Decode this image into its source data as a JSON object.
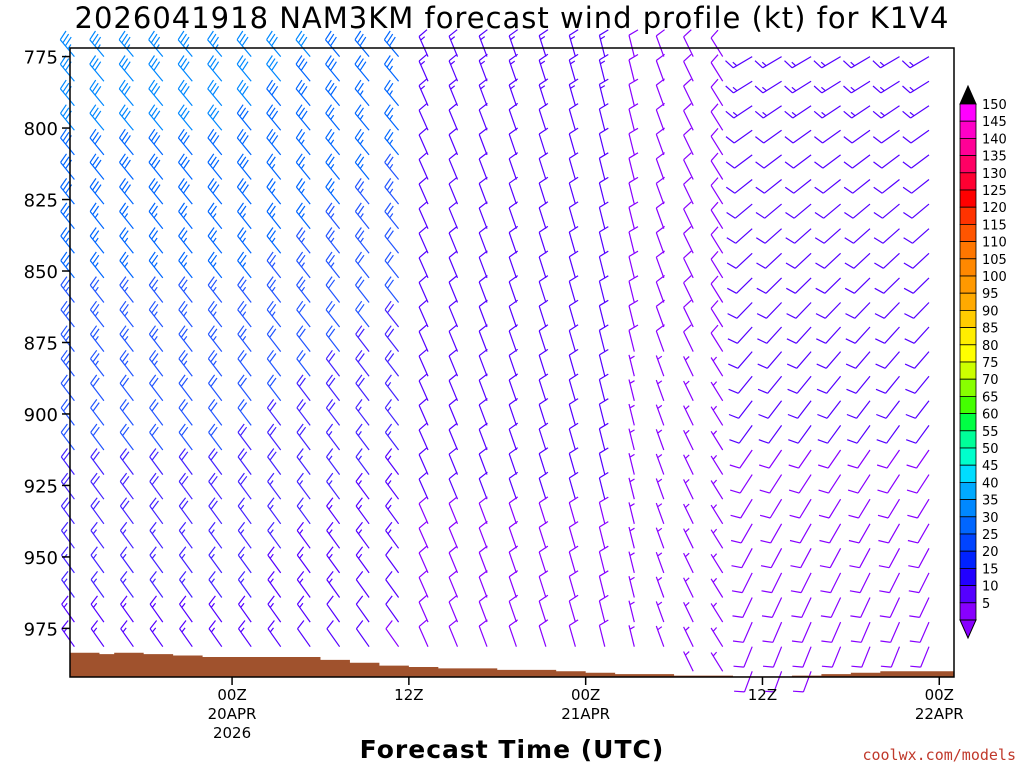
{
  "chart_data": {
    "type": "wind_barb_time_height",
    "title": "2026041918 NAM3KM forecast wind profile (kt) for K1V4",
    "xlabel": "Forecast Time (UTC)",
    "ylabel": "",
    "y_ticks": [
      "775",
      "800",
      "825",
      "850",
      "875",
      "900",
      "925",
      "950",
      "975"
    ],
    "y_range_hpa": [
      772,
      992
    ],
    "x_range_hours": [
      -5,
      55
    ],
    "x_ticks": [
      {
        "label": "00Z",
        "date": "20APR",
        "year": "2026",
        "hour": 6
      },
      {
        "label": "12Z",
        "date": "",
        "year": "",
        "hour": 18
      },
      {
        "label": "00Z",
        "date": "21APR",
        "year": "",
        "hour": 30
      },
      {
        "label": "12Z",
        "date": "",
        "year": "",
        "hour": 42
      },
      {
        "label": "00Z",
        "date": "22APR",
        "year": "",
        "hour": 54
      }
    ],
    "colorbar": {
      "labels": [
        "150",
        "145",
        "140",
        "135",
        "130",
        "125",
        "120",
        "115",
        "110",
        "105",
        "100",
        "95",
        "90",
        "85",
        "80",
        "75",
        "70",
        "65",
        "60",
        "55",
        "50",
        "45",
        "40",
        "35",
        "30",
        "25",
        "20",
        "15",
        "10",
        "5"
      ],
      "colors": [
        "#ff00ff",
        "#ff00c8",
        "#ff0096",
        "#ff0064",
        "#ff0032",
        "#ff0000",
        "#ff3300",
        "#ff5500",
        "#ff7700",
        "#ff8800",
        "#ff9900",
        "#ffaa00",
        "#ffcc00",
        "#ffee00",
        "#ffff00",
        "#ccff00",
        "#88ff00",
        "#44ff00",
        "#00ff44",
        "#00ff99",
        "#00ffcc",
        "#00ddff",
        "#00aaff",
        "#0088ff",
        "#0066ff",
        "#0044ff",
        "#0022ff",
        "#2200ff",
        "#5500ff",
        "#8800ff"
      ]
    },
    "terrain_color": "#a0522d",
    "times": 30,
    "levels": 26,
    "wind_summary": [
      {
        "period": "20APR 00Z-18Z",
        "direction": "NW",
        "speed_kt": [
          25,
          35
        ]
      },
      {
        "period": "21APR 00Z-12Z",
        "direction": "NNW",
        "speed_kt": [
          10,
          15
        ]
      },
      {
        "period": "21APR 12Z-22APR 06Z",
        "direction": "SW",
        "speed_kt": [
          5,
          15
        ]
      }
    ]
  },
  "credit": "coolwx.com/models"
}
